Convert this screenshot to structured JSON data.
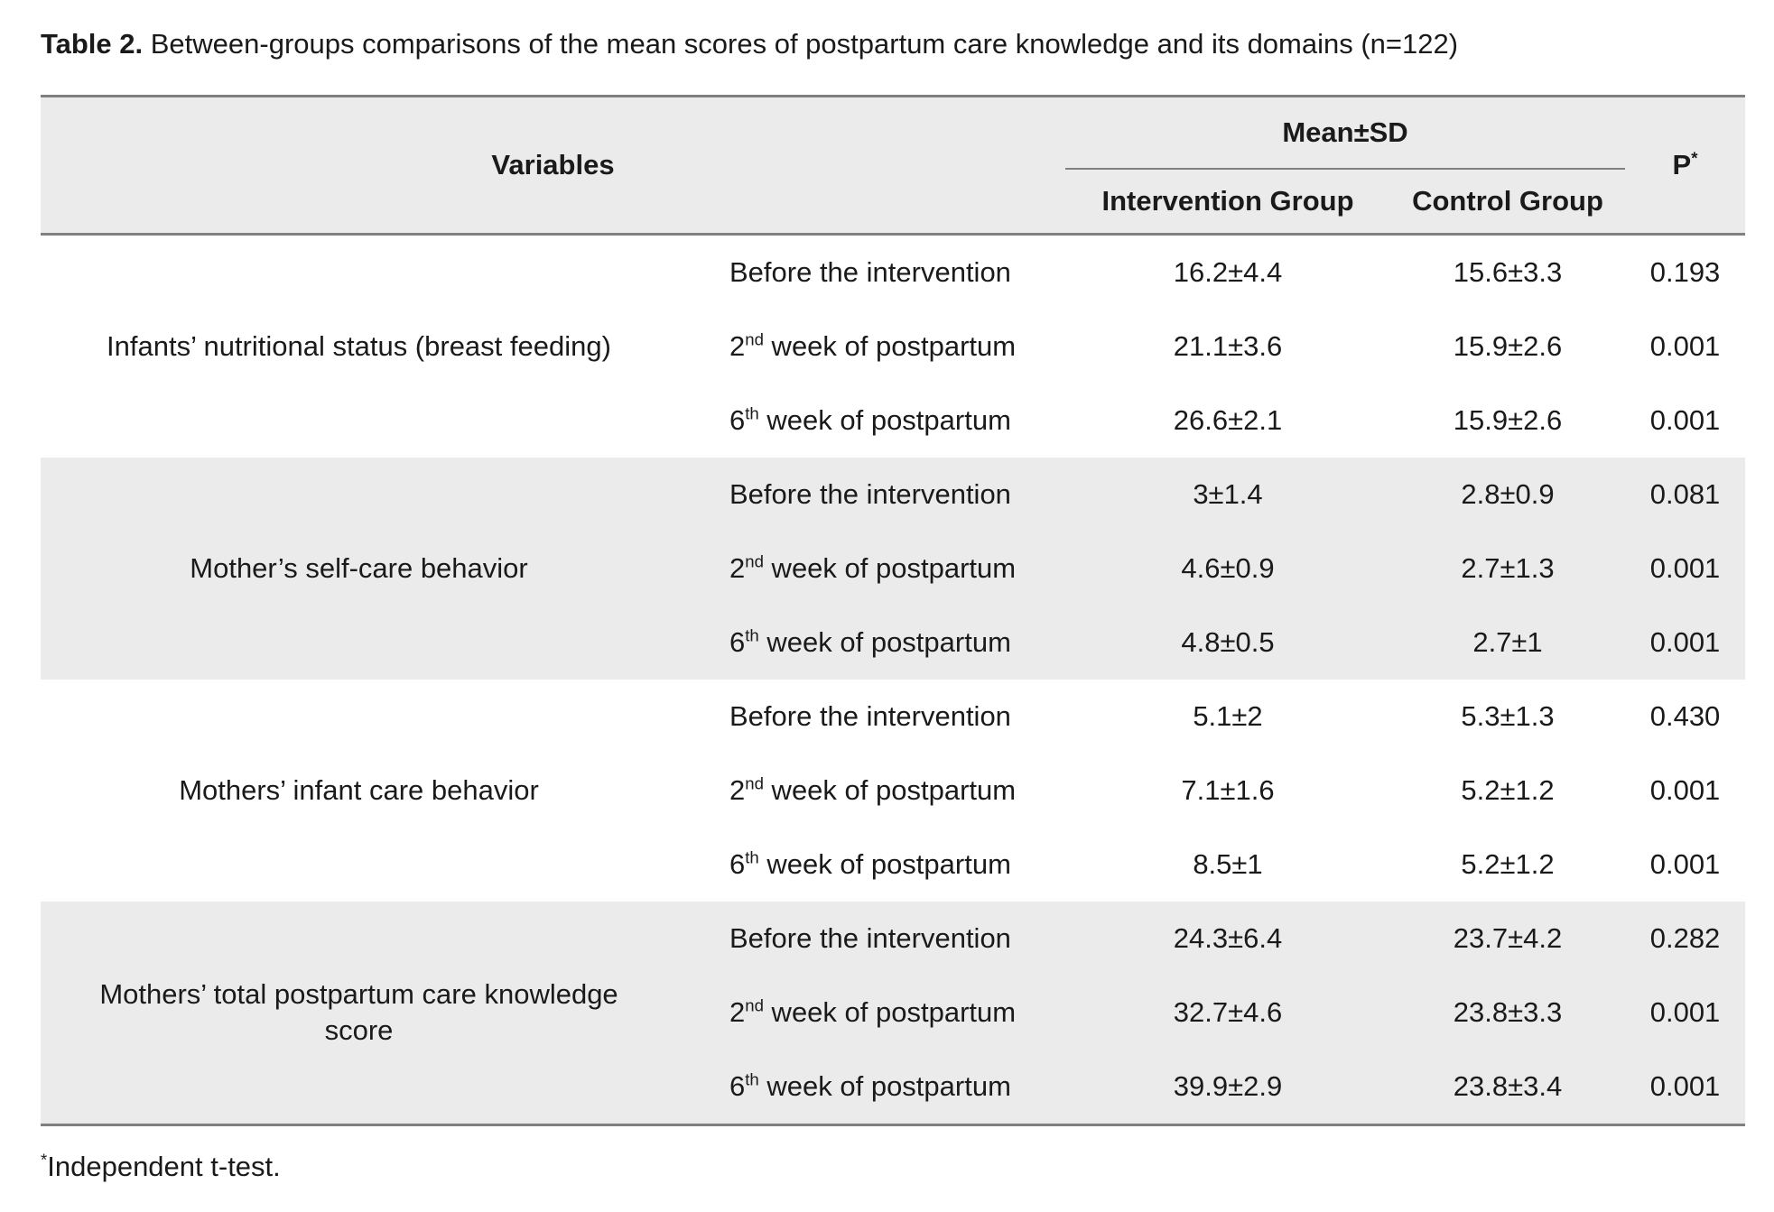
{
  "colors": {
    "shaded_row_bg": "#ebebeb",
    "rule_line": "#808080",
    "text": "#1a1a1a",
    "page_bg": "#ffffff"
  },
  "caption": {
    "label": "Table 2.",
    "text": " Between-groups comparisons of the mean scores of postpartum care knowledge and its domains (n=122)"
  },
  "header": {
    "variables": "Variables",
    "mean_sd": "Mean±SD",
    "intervention_group": "Intervention Group",
    "control_group": "Control Group",
    "p_label": "P",
    "p_sup": "*"
  },
  "groups": [
    {
      "variable": "Infants’ nutritional status (breast feeding)",
      "rows": [
        {
          "time_pre": "Before the intervention",
          "time_sup": "",
          "time_post": "",
          "intervention": "16.2±4.4",
          "control": "15.6±3.3",
          "p": "0.193"
        },
        {
          "time_pre": "2",
          "time_sup": "nd",
          "time_post": " week of postpartum",
          "intervention": "21.1±3.6",
          "control": "15.9±2.6",
          "p": "0.001"
        },
        {
          "time_pre": "6",
          "time_sup": "th",
          "time_post": " week of postpartum",
          "intervention": "26.6±2.1",
          "control": "15.9±2.6",
          "p": "0.001"
        }
      ]
    },
    {
      "variable": "Mother’s self-care behavior",
      "rows": [
        {
          "time_pre": "Before the intervention",
          "time_sup": "",
          "time_post": "",
          "intervention": "3±1.4",
          "control": "2.8±0.9",
          "p": "0.081"
        },
        {
          "time_pre": "2",
          "time_sup": "nd",
          "time_post": " week of postpartum",
          "intervention": "4.6±0.9",
          "control": "2.7±1.3",
          "p": "0.001"
        },
        {
          "time_pre": "6",
          "time_sup": "th",
          "time_post": " week of postpartum",
          "intervention": "4.8±0.5",
          "control": "2.7±1",
          "p": "0.001"
        }
      ]
    },
    {
      "variable": "Mothers’ infant care behavior",
      "rows": [
        {
          "time_pre": "Before the intervention",
          "time_sup": "",
          "time_post": "",
          "intervention": "5.1±2",
          "control": "5.3±1.3",
          "p": "0.430"
        },
        {
          "time_pre": "2",
          "time_sup": "nd",
          "time_post": " week of postpartum",
          "intervention": "7.1±1.6",
          "control": "5.2±1.2",
          "p": "0.001"
        },
        {
          "time_pre": "6",
          "time_sup": "th",
          "time_post": " week of postpartum",
          "intervention": "8.5±1",
          "control": "5.2±1.2",
          "p": "0.001"
        }
      ]
    },
    {
      "variable": "Mothers’ total postpartum care knowledge score",
      "rows": [
        {
          "time_pre": "Before the intervention",
          "time_sup": "",
          "time_post": "",
          "intervention": "24.3±6.4",
          "control": "23.7±4.2",
          "p": "0.282"
        },
        {
          "time_pre": "2",
          "time_sup": "nd",
          "time_post": " week of postpartum",
          "intervention": "32.7±4.6",
          "control": "23.8±3.3",
          "p": "0.001"
        },
        {
          "time_pre": "6",
          "time_sup": "th",
          "time_post": " week of postpartum",
          "intervention": "39.9±2.9",
          "control": "23.8±3.4",
          "p": "0.001"
        }
      ]
    }
  ],
  "footnote": {
    "sup": "*",
    "text": "Independent t-test."
  }
}
